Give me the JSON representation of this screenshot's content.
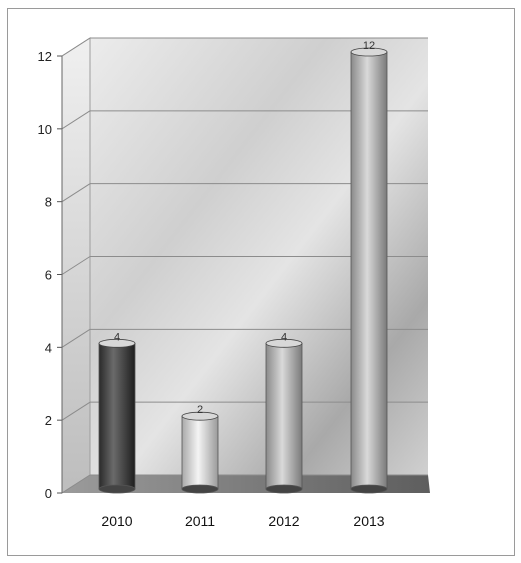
{
  "chart_data": {
    "type": "bar",
    "style": "3d-cylinder",
    "categories": [
      "2010",
      "2011",
      "2012",
      "2013"
    ],
    "values": [
      4,
      2,
      4,
      12
    ],
    "data_labels": [
      "4",
      "2",
      "4",
      "12"
    ],
    "yticks": [
      "0",
      "2",
      "4",
      "6",
      "8",
      "10",
      "12"
    ],
    "ylim": [
      0,
      12
    ],
    "grid": true,
    "legend": "none",
    "colors": {
      "back_wall": "#d8d8d8",
      "bar_dark": "#3a3a3a",
      "bar_light": "#e6e6e6",
      "grid": "#8c8c8c",
      "floor": "#7a7a7a"
    }
  }
}
